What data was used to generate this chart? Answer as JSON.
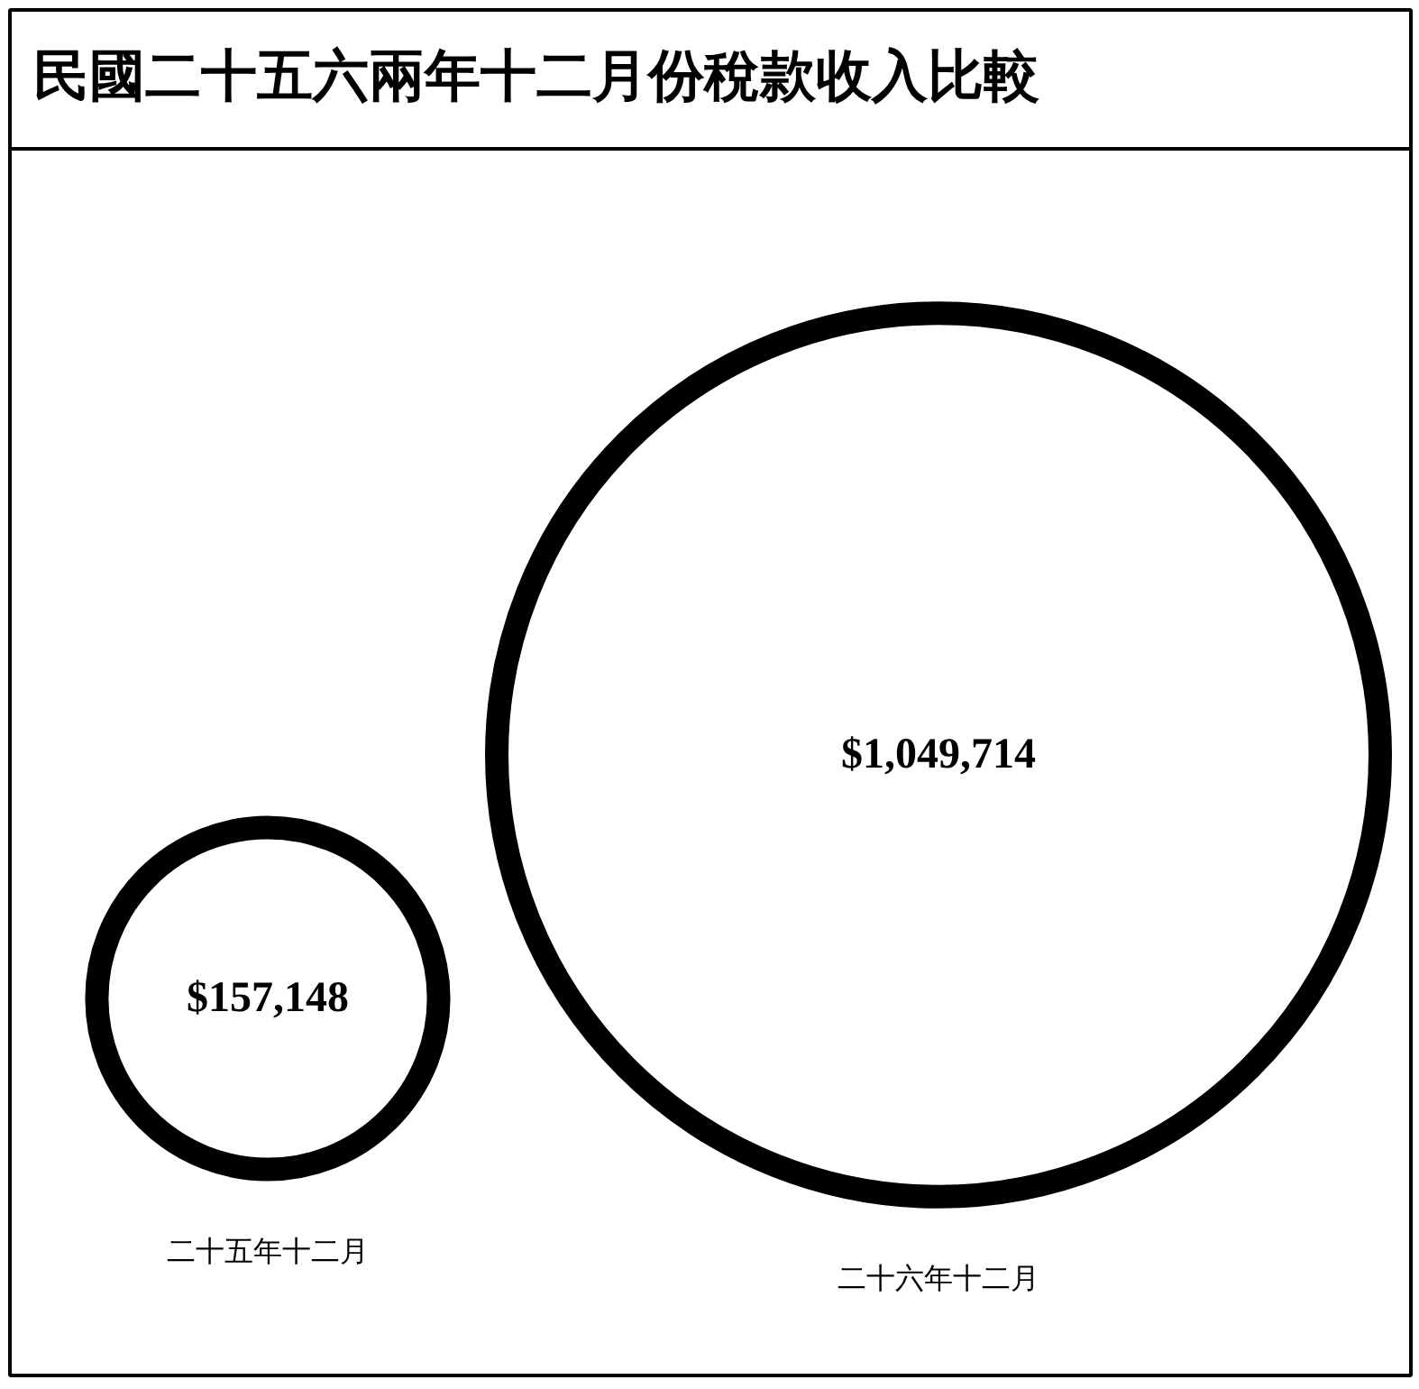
{
  "chart_data": {
    "type": "other",
    "title": "民國二十五六兩年十二月份稅款收入比較",
    "categories": [
      "二十五年十二月",
      "二十六年十二月"
    ],
    "values": [
      157148,
      1049714
    ],
    "value_labels": [
      "$157,148",
      "$1,049,714"
    ],
    "colors": [
      "#000000",
      "#000000"
    ]
  }
}
